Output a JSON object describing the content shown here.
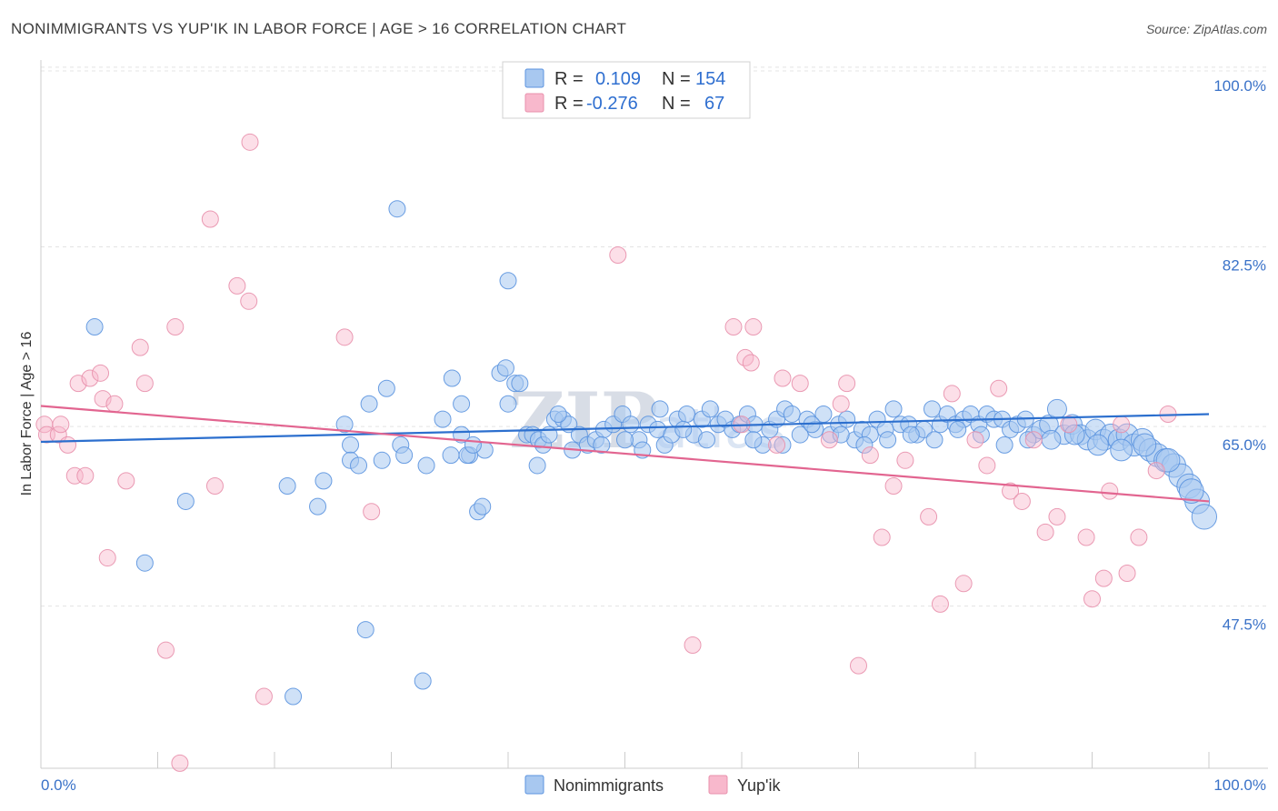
{
  "header": {
    "title": "NONIMMIGRANTS VS YUP'IK IN LABOR FORCE | AGE > 16 CORRELATION CHART",
    "source": "Source: ZipAtlas.com"
  },
  "legend": {
    "rows": [
      {
        "r_label": "R =",
        "r_value": "0.109",
        "n_label": "N =",
        "n_value": "154",
        "color": "#a8c8f0"
      },
      {
        "r_label": "R =",
        "r_value": "-0.276",
        "n_label": "N =",
        "n_value": "67",
        "color": "#f8b8cc"
      }
    ]
  },
  "bottom_legend": {
    "items": [
      {
        "label": "Nonimmigrants",
        "color": "#a8c8f0"
      },
      {
        "label": "Yup'ik",
        "color": "#f8b8cc"
      }
    ]
  },
  "watermark": {
    "text1": "ZIP",
    "text2": "atlas"
  },
  "chart_data": {
    "type": "scatter",
    "title": "NONIMMIGRANTS VS YUP'IK IN LABOR FORCE | AGE > 16 CORRELATION CHART",
    "xlabel": "",
    "ylabel": "In Labor Force | Age > 16",
    "xlim": [
      0,
      100
    ],
    "ylim": [
      30.5,
      101.5
    ],
    "x_tick_labels": [
      "0.0%",
      "100.0%"
    ],
    "y_ticks": [
      47.5,
      65.0,
      82.5,
      100.0
    ],
    "y_tick_labels": [
      "47.5%",
      "65.0%",
      "82.5%",
      "100.0%"
    ],
    "grid": true,
    "series": [
      {
        "name": "Nonimmigrants",
        "color": "#5b93df",
        "fill": "#a8c8f0",
        "trend": {
          "x": [
            0,
            100
          ],
          "y": [
            64.3,
            67.0
          ],
          "color": "#2c6fce"
        },
        "points": [
          [
            4.6,
            75.5
          ],
          [
            30.5,
            87.0
          ],
          [
            40.0,
            80.0
          ],
          [
            8.9,
            52.5
          ],
          [
            12.4,
            58.5
          ],
          [
            27.8,
            46.0
          ],
          [
            21.6,
            39.5
          ],
          [
            32.7,
            41.0
          ],
          [
            21.1,
            60.0
          ],
          [
            23.7,
            58.0
          ],
          [
            24.2,
            60.5
          ],
          [
            26.0,
            66.0
          ],
          [
            26.5,
            64.0
          ],
          [
            26.5,
            62.5
          ],
          [
            27.2,
            62.0
          ],
          [
            28.1,
            68.0
          ],
          [
            29.2,
            62.5
          ],
          [
            29.6,
            69.5
          ],
          [
            30.8,
            64.0
          ],
          [
            31.1,
            63.0
          ],
          [
            33.0,
            62.0
          ],
          [
            34.4,
            66.5
          ],
          [
            35.1,
            63.0
          ],
          [
            35.2,
            70.5
          ],
          [
            36.0,
            68.0
          ],
          [
            36.0,
            65.0
          ],
          [
            36.7,
            63.0
          ],
          [
            37.4,
            57.5
          ],
          [
            37.8,
            58.0
          ],
          [
            38.0,
            63.5
          ],
          [
            39.3,
            71.0
          ],
          [
            39.8,
            71.5
          ],
          [
            40.0,
            68.0
          ],
          [
            40.6,
            70.0
          ],
          [
            41.0,
            70.0
          ],
          [
            41.6,
            65.0
          ],
          [
            42.1,
            65.0
          ],
          [
            42.5,
            62.0
          ],
          [
            42.6,
            64.5
          ],
          [
            43.0,
            64.0
          ],
          [
            44.0,
            66.5
          ],
          [
            44.7,
            66.5
          ],
          [
            45.2,
            66.0
          ],
          [
            46.1,
            65.0
          ],
          [
            46.8,
            64.0
          ],
          [
            47.5,
            64.5
          ],
          [
            48.2,
            65.5
          ],
          [
            49.0,
            66.0
          ],
          [
            49.8,
            67.0
          ],
          [
            50.5,
            66.0
          ],
          [
            51.2,
            64.5
          ],
          [
            52.0,
            66.0
          ],
          [
            52.8,
            65.5
          ],
          [
            53.4,
            64.0
          ],
          [
            54.0,
            65.0
          ],
          [
            54.5,
            66.5
          ],
          [
            55.3,
            67.0
          ],
          [
            55.9,
            65.0
          ],
          [
            56.6,
            66.5
          ],
          [
            57.3,
            67.5
          ],
          [
            58.0,
            66.0
          ],
          [
            58.6,
            66.5
          ],
          [
            59.2,
            65.5
          ],
          [
            59.8,
            66.0
          ],
          [
            60.5,
            67.0
          ],
          [
            61.1,
            66.0
          ],
          [
            61.8,
            64.0
          ],
          [
            62.4,
            65.5
          ],
          [
            63.0,
            66.5
          ],
          [
            63.7,
            67.5
          ],
          [
            64.3,
            67.0
          ],
          [
            65.0,
            65.0
          ],
          [
            65.6,
            66.5
          ],
          [
            66.3,
            65.5
          ],
          [
            67.0,
            67.0
          ],
          [
            67.6,
            65.0
          ],
          [
            68.3,
            66.0
          ],
          [
            69.0,
            66.5
          ],
          [
            69.7,
            64.5
          ],
          [
            70.3,
            65.5
          ],
          [
            71.0,
            65.0
          ],
          [
            71.6,
            66.5
          ],
          [
            72.3,
            65.5
          ],
          [
            73.0,
            67.5
          ],
          [
            73.6,
            66.0
          ],
          [
            74.3,
            66.0
          ],
          [
            75.0,
            65.0
          ],
          [
            75.6,
            65.5
          ],
          [
            76.3,
            67.5
          ],
          [
            77.0,
            66.0
          ],
          [
            77.6,
            67.0
          ],
          [
            78.3,
            66.0
          ],
          [
            79.0,
            66.5
          ],
          [
            79.6,
            67.0
          ],
          [
            80.3,
            66.0
          ],
          [
            81.0,
            67.0
          ],
          [
            81.6,
            66.5
          ],
          [
            82.3,
            66.5
          ],
          [
            83.0,
            65.5
          ],
          [
            83.6,
            66.0
          ],
          [
            84.3,
            66.5
          ],
          [
            85.0,
            65.0
          ],
          [
            85.6,
            65.5
          ],
          [
            86.3,
            66.0
          ],
          [
            87.0,
            67.5
          ],
          [
            87.6,
            65.0
          ],
          [
            88.3,
            66.0
          ],
          [
            89.0,
            65.0
          ],
          [
            89.6,
            64.5
          ],
          [
            90.3,
            65.5
          ],
          [
            91.0,
            64.5
          ],
          [
            91.6,
            65.0
          ],
          [
            92.3,
            64.5
          ],
          [
            93.0,
            65.0
          ],
          [
            93.6,
            64.0
          ],
          [
            94.3,
            64.5
          ],
          [
            95.0,
            63.5
          ],
          [
            95.6,
            63.0
          ],
          [
            96.3,
            62.5
          ],
          [
            97.0,
            62.0
          ],
          [
            97.6,
            61.0
          ],
          [
            98.3,
            60.0
          ],
          [
            99.0,
            58.5
          ],
          [
            99.6,
            57.0
          ],
          [
            36.5,
            63.0
          ],
          [
            37.0,
            64.0
          ],
          [
            45.5,
            63.5
          ],
          [
            44.3,
            67.0
          ],
          [
            43.5,
            65.0
          ],
          [
            48.0,
            64.0
          ],
          [
            50.0,
            64.5
          ],
          [
            51.5,
            63.5
          ],
          [
            53.0,
            67.5
          ],
          [
            55.0,
            65.5
          ],
          [
            57.0,
            64.5
          ],
          [
            61.0,
            64.5
          ],
          [
            63.5,
            64.0
          ],
          [
            66.0,
            66.0
          ],
          [
            68.5,
            65.0
          ],
          [
            70.5,
            64.0
          ],
          [
            72.5,
            64.5
          ],
          [
            74.5,
            65.0
          ],
          [
            76.5,
            64.5
          ],
          [
            78.5,
            65.5
          ],
          [
            80.5,
            65.0
          ],
          [
            82.5,
            64.0
          ],
          [
            84.5,
            64.5
          ],
          [
            86.5,
            64.5
          ],
          [
            88.5,
            65.0
          ],
          [
            90.5,
            64.0
          ],
          [
            92.5,
            63.5
          ],
          [
            94.5,
            64.0
          ],
          [
            96.5,
            62.5
          ],
          [
            98.5,
            59.5
          ]
        ]
      },
      {
        "name": "Yup'ik",
        "color": "#e890ac",
        "fill": "#f8b8cc",
        "trend": {
          "x": [
            0,
            100
          ],
          "y": [
            67.8,
            58.5
          ],
          "color": "#e26590"
        },
        "points": [
          [
            0.3,
            66.0
          ],
          [
            0.5,
            65.0
          ],
          [
            1.5,
            65.0
          ],
          [
            1.7,
            66.0
          ],
          [
            2.3,
            64.0
          ],
          [
            2.9,
            61.0
          ],
          [
            3.2,
            70.0
          ],
          [
            3.8,
            61.0
          ],
          [
            4.2,
            70.5
          ],
          [
            5.1,
            71.0
          ],
          [
            5.3,
            68.5
          ],
          [
            6.3,
            68.0
          ],
          [
            5.7,
            53.0
          ],
          [
            7.3,
            60.5
          ],
          [
            8.5,
            73.5
          ],
          [
            8.9,
            70.0
          ],
          [
            10.7,
            44.0
          ],
          [
            11.5,
            75.5
          ],
          [
            11.9,
            33.0
          ],
          [
            14.5,
            86.0
          ],
          [
            14.9,
            60.0
          ],
          [
            16.8,
            79.5
          ],
          [
            17.8,
            78.0
          ],
          [
            17.9,
            93.5
          ],
          [
            19.1,
            39.5
          ],
          [
            26.0,
            74.5
          ],
          [
            28.3,
            57.5
          ],
          [
            49.4,
            82.5
          ],
          [
            55.8,
            44.5
          ],
          [
            59.3,
            75.5
          ],
          [
            60.0,
            66.0
          ],
          [
            60.3,
            72.5
          ],
          [
            60.8,
            72.0
          ],
          [
            61.0,
            75.5
          ],
          [
            63.0,
            64.0
          ],
          [
            63.5,
            70.5
          ],
          [
            65.0,
            70.0
          ],
          [
            67.5,
            64.5
          ],
          [
            68.5,
            68.0
          ],
          [
            69.0,
            70.0
          ],
          [
            70.0,
            42.5
          ],
          [
            71.0,
            63.0
          ],
          [
            72.0,
            55.0
          ],
          [
            73.0,
            60.0
          ],
          [
            74.0,
            62.5
          ],
          [
            76.0,
            57.0
          ],
          [
            77.0,
            48.5
          ],
          [
            78.0,
            69.0
          ],
          [
            79.0,
            50.5
          ],
          [
            80.0,
            64.5
          ],
          [
            81.0,
            62.0
          ],
          [
            82.0,
            69.5
          ],
          [
            83.0,
            59.5
          ],
          [
            84.0,
            58.5
          ],
          [
            85.0,
            64.5
          ],
          [
            86.0,
            55.5
          ],
          [
            87.0,
            57.0
          ],
          [
            88.0,
            66.0
          ],
          [
            89.5,
            55.0
          ],
          [
            90.0,
            49.0
          ],
          [
            91.0,
            51.0
          ],
          [
            91.5,
            59.5
          ],
          [
            92.5,
            66.0
          ],
          [
            93.0,
            51.5
          ],
          [
            94.0,
            55.0
          ],
          [
            95.5,
            61.5
          ],
          [
            96.5,
            67.0
          ]
        ]
      }
    ]
  }
}
